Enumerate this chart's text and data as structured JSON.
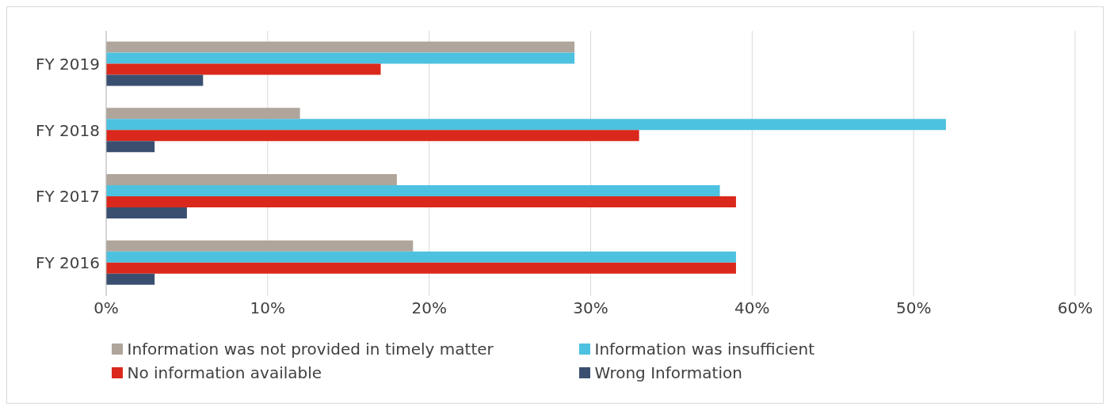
{
  "chart_data": {
    "type": "bar",
    "orientation": "horizontal",
    "categories": [
      "FY 2019",
      "FY 2018",
      "FY 2017",
      "FY 2016"
    ],
    "series": [
      {
        "name": "Information was not provided in timely matter",
        "color": "#afa59a",
        "values": [
          29,
          12,
          18,
          19
        ]
      },
      {
        "name": "Information was insufficient",
        "color": "#4dc1e0",
        "values": [
          29,
          52,
          38,
          39
        ]
      },
      {
        "name": "No information available",
        "color": "#da291c",
        "values": [
          17,
          33,
          39,
          39
        ]
      },
      {
        "name": "Wrong Information",
        "color": "#3a4f70",
        "values": [
          6,
          3,
          5,
          3
        ]
      }
    ],
    "xlim": [
      0,
      60
    ],
    "xticks": [
      {
        "value": 0,
        "label": "0%"
      },
      {
        "value": 10,
        "label": "10%"
      },
      {
        "value": 20,
        "label": "20%"
      },
      {
        "value": 30,
        "label": "30%"
      },
      {
        "value": 40,
        "label": "40%"
      },
      {
        "value": 50,
        "label": "50%"
      },
      {
        "value": 60,
        "label": "60%"
      }
    ],
    "grid": "x",
    "legend": "bottom"
  }
}
